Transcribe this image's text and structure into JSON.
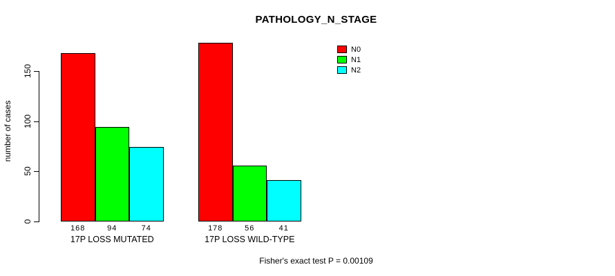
{
  "title": "PATHOLOGY_N_STAGE",
  "chart_data": {
    "type": "bar",
    "grouped": true,
    "title": "PATHOLOGY_N_STAGE",
    "categories": [
      "17P LOSS MUTATED",
      "17P LOSS WILD-TYPE"
    ],
    "series": [
      {
        "name": "N0",
        "color": "#ff0000",
        "values": [
          168,
          178
        ]
      },
      {
        "name": "N1",
        "color": "#00ff00",
        "values": [
          94,
          56
        ]
      },
      {
        "name": "N2",
        "color": "#00ffff",
        "values": [
          74,
          41
        ]
      }
    ],
    "xlabel": "",
    "ylabel": "number of cases",
    "yticks": [
      0,
      50,
      100,
      150
    ],
    "ylim": [
      0,
      180
    ],
    "grid": false,
    "legend_position": "top-right",
    "bar_value_labels_shown": true,
    "annotation": "Fisher's exact test P = 0.00109",
    "bar_border_color": "#000000",
    "background_color": "#ffffff"
  }
}
